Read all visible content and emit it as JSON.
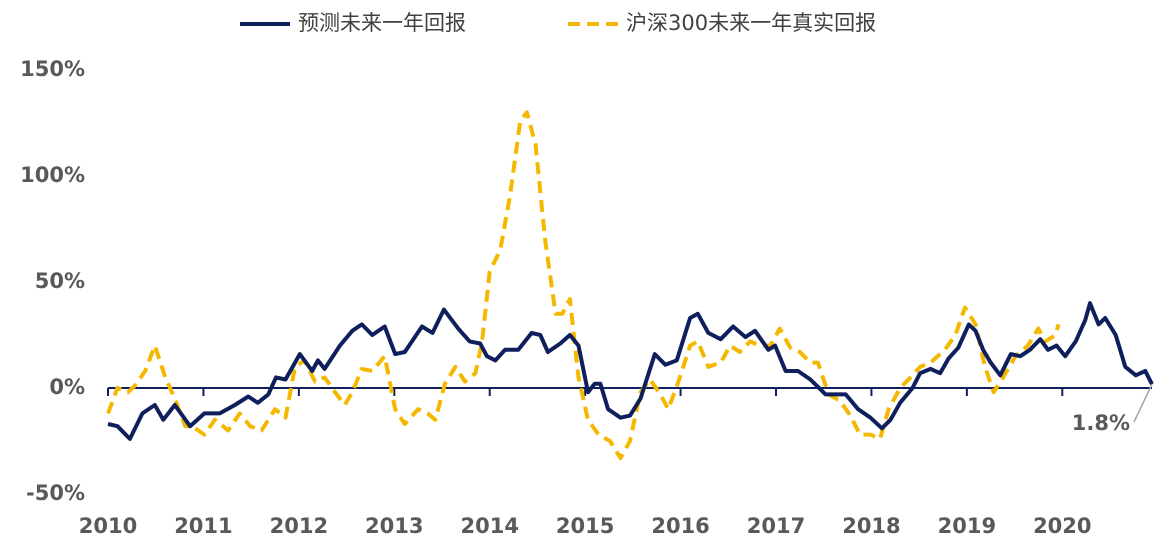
{
  "chart_data": {
    "type": "line",
    "xlim": [
      2010,
      2020.94
    ],
    "xticks": [
      2010,
      2011,
      2012,
      2013,
      2014,
      2015,
      2016,
      2017,
      2018,
      2019,
      2020
    ],
    "ylim": [
      -50,
      150
    ],
    "yticks": [
      {
        "value": -50,
        "label": "-50%"
      },
      {
        "value": 0,
        "label": "0%"
      },
      {
        "value": 50,
        "label": "50%"
      },
      {
        "value": 100,
        "label": "100%"
      },
      {
        "value": 150,
        "label": "150%"
      }
    ],
    "grid": false,
    "legend": "top",
    "series": [
      {
        "name": "预测未来一年回报",
        "color": "#0f1f5c",
        "dash": false,
        "x": [
          2010.0,
          2010.1,
          2010.23,
          2010.36,
          2010.49,
          2010.58,
          2010.7,
          2010.86,
          2011.01,
          2011.17,
          2011.33,
          2011.47,
          2011.57,
          2011.68,
          2011.76,
          2011.86,
          2012.01,
          2012.14,
          2012.2,
          2012.27,
          2012.43,
          2012.56,
          2012.66,
          2012.77,
          2012.9,
          2013.01,
          2013.11,
          2013.29,
          2013.4,
          2013.52,
          2013.67,
          2013.79,
          2013.9,
          2013.97,
          2014.06,
          2014.16,
          2014.3,
          2014.44,
          2014.53,
          2014.61,
          2014.74,
          2014.84,
          2014.93,
          2015.03,
          2015.1,
          2015.16,
          2015.24,
          2015.37,
          2015.47,
          2015.58,
          2015.73,
          2015.84,
          2015.96,
          2016.1,
          2016.18,
          2016.29,
          2016.42,
          2016.55,
          2016.68,
          2016.78,
          2016.92,
          2016.99,
          2017.1,
          2017.23,
          2017.36,
          2017.52,
          2017.73,
          2017.86,
          2017.99,
          2018.11,
          2018.2,
          2018.3,
          2018.43,
          2018.51,
          2018.62,
          2018.72,
          2018.81,
          2018.91,
          2019.02,
          2019.09,
          2019.17,
          2019.25,
          2019.35,
          2019.46,
          2019.56,
          2019.66,
          2019.77,
          2019.85,
          2019.94,
          2020.03,
          2020.14,
          2020.24,
          2020.29,
          2020.38,
          2020.45,
          2020.56,
          2020.66,
          2020.77,
          2020.87,
          2020.94
        ],
        "values": [
          -17,
          -18,
          -24,
          -12,
          -8,
          -15,
          -8,
          -18,
          -12,
          -12,
          -8,
          -4,
          -7,
          -3,
          5,
          4,
          16,
          8,
          13,
          9,
          20,
          27,
          30,
          25,
          29,
          16,
          17,
          29,
          26,
          37,
          28,
          22,
          21,
          15,
          13,
          18,
          18,
          26,
          25,
          17,
          21,
          25,
          20,
          -2,
          2,
          2,
          -10,
          -14,
          -13,
          -5,
          16,
          11,
          13,
          33,
          35,
          26,
          23,
          29,
          24,
          27,
          18,
          20,
          8,
          8,
          4,
          -3,
          -3,
          -10,
          -14,
          -19,
          -15,
          -7,
          0,
          7,
          9,
          7,
          14,
          19,
          30,
          27,
          18,
          12,
          6,
          16,
          15,
          18,
          23,
          18,
          20,
          15,
          22,
          32,
          40,
          30,
          33,
          25,
          10,
          6,
          8,
          1.8
        ]
      },
      {
        "name": "沪深300未来一年真实回报",
        "color": "#f5b800",
        "dash": true,
        "x": [
          2010.0,
          2010.1,
          2010.21,
          2010.28,
          2010.39,
          2010.49,
          2010.6,
          2010.7,
          2010.81,
          2010.88,
          2011.01,
          2011.12,
          2011.26,
          2011.38,
          2011.49,
          2011.61,
          2011.75,
          2011.86,
          2011.96,
          2012.06,
          2012.17,
          2012.27,
          2012.38,
          2012.48,
          2012.56,
          2012.66,
          2012.77,
          2012.9,
          2013.01,
          2013.11,
          2013.25,
          2013.35,
          2013.43,
          2013.53,
          2013.64,
          2013.74,
          2013.85,
          2013.92,
          2014.0,
          2014.11,
          2014.21,
          2014.32,
          2014.39,
          2014.48,
          2014.58,
          2014.69,
          2014.76,
          2014.84,
          2014.93,
          2015.03,
          2015.14,
          2015.26,
          2015.37,
          2015.47,
          2015.58,
          2015.68,
          2015.79,
          2015.87,
          2015.97,
          2016.1,
          2016.18,
          2016.29,
          2016.42,
          2016.52,
          2016.62,
          2016.73,
          2016.83,
          2016.94,
          2017.04,
          2017.15,
          2017.25,
          2017.36,
          2017.44,
          2017.55,
          2017.67,
          2017.78,
          2017.88,
          2017.99,
          2018.09,
          2018.18,
          2018.3,
          2018.41,
          2018.51,
          2018.62,
          2018.77,
          2018.88,
          2018.98,
          2019.09,
          2019.19,
          2019.28,
          2019.38,
          2019.51,
          2019.64,
          2019.75,
          2019.82,
          2019.93,
          2019.96
        ],
        "values": [
          -12,
          0,
          -2,
          1,
          8,
          20,
          5,
          -5,
          -18,
          -18,
          -22,
          -15,
          -20,
          -12,
          -18,
          -20,
          -10,
          -14,
          10,
          13,
          3,
          5,
          -2,
          -8,
          -2,
          9,
          8,
          15,
          -10,
          -17,
          -10,
          -12,
          -15,
          2,
          10,
          3,
          7,
          22,
          55,
          65,
          90,
          126,
          130,
          115,
          70,
          35,
          35,
          42,
          5,
          -15,
          -22,
          -25,
          -33,
          -25,
          -2,
          4,
          -3,
          -10,
          2,
          20,
          22,
          10,
          12,
          20,
          17,
          22,
          20,
          20,
          28,
          19,
          17,
          12,
          12,
          -3,
          -6,
          -13,
          -22,
          -22,
          -24,
          -10,
          0,
          5,
          10,
          12,
          18,
          25,
          38,
          30,
          10,
          -2,
          5,
          15,
          20,
          28,
          22,
          25,
          30
        ]
      }
    ],
    "annotations": [
      {
        "x": 2020.94,
        "value": 1.8,
        "label": "1.8%"
      }
    ]
  }
}
